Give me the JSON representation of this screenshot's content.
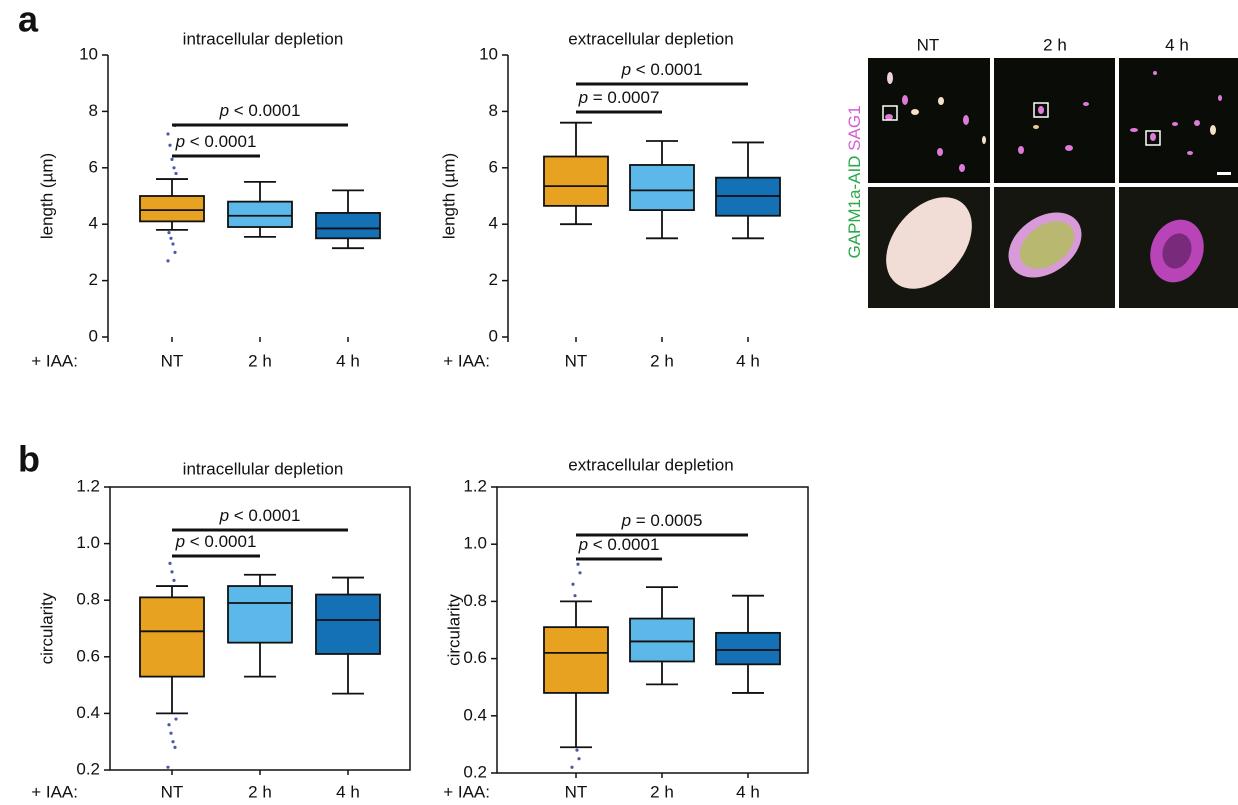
{
  "panel_labels": [
    "a",
    "b"
  ],
  "micrograph": {
    "columns": [
      "NT",
      "2 h",
      "4 h"
    ],
    "channel_labels": [
      {
        "text": "GAPM1a-AID",
        "color": "#2aa84a"
      },
      {
        "text": "SAG1",
        "color": "#d45fd0"
      }
    ]
  },
  "chart_data": [
    {
      "type": "box",
      "title": "intracellular depletion",
      "y_label": "length (µm)",
      "x_prefix": "+ IAA:",
      "categories": [
        "NT",
        "2 h",
        "4 h"
      ],
      "ylim": [
        0,
        10
      ],
      "yticks": [
        0,
        2,
        4,
        6,
        8,
        10
      ],
      "frame": false,
      "outlier_color": "#4a5aa8",
      "boxes": [
        {
          "color": "#e8a221",
          "whisker_low": 3.8,
          "q1": 4.1,
          "median": 4.5,
          "q3": 5.0,
          "whisker_high": 5.6,
          "outliers": [
            2.7,
            3.0,
            3.3,
            3.5,
            3.7,
            5.8,
            6.0,
            6.3,
            6.8,
            7.2,
            7.5
          ]
        },
        {
          "color": "#5cb8e8",
          "whisker_low": 3.55,
          "q1": 3.9,
          "median": 4.3,
          "q3": 4.8,
          "whisker_high": 5.5,
          "outliers": []
        },
        {
          "color": "#1471b6",
          "whisker_low": 3.15,
          "q1": 3.5,
          "median": 3.85,
          "q3": 4.4,
          "whisker_high": 5.2,
          "outliers": []
        }
      ],
      "comparisons": [
        {
          "between": [
            "NT",
            "2 h"
          ],
          "symbol": "p",
          "relation": " < 0.0001"
        },
        {
          "between": [
            "NT",
            "4 h"
          ],
          "symbol": "p",
          "relation": " < 0.0001"
        }
      ]
    },
    {
      "type": "box",
      "title": "extracellular depletion",
      "y_label": "length (µm)",
      "x_prefix": "+ IAA:",
      "categories": [
        "NT",
        "2 h",
        "4 h"
      ],
      "ylim": [
        0,
        10
      ],
      "yticks": [
        0,
        2,
        4,
        6,
        8,
        10
      ],
      "frame": false,
      "outlier_color": "#4a5aa8",
      "boxes": [
        {
          "color": "#e8a221",
          "whisker_low": 4.0,
          "q1": 4.65,
          "median": 5.35,
          "q3": 6.4,
          "whisker_high": 7.6,
          "outliers": []
        },
        {
          "color": "#5cb8e8",
          "whisker_low": 3.5,
          "q1": 4.5,
          "median": 5.2,
          "q3": 6.1,
          "whisker_high": 6.95,
          "outliers": []
        },
        {
          "color": "#1471b6",
          "whisker_low": 3.5,
          "q1": 4.3,
          "median": 5.0,
          "q3": 5.65,
          "whisker_high": 6.9,
          "outliers": []
        }
      ],
      "comparisons": [
        {
          "between": [
            "NT",
            "2 h"
          ],
          "symbol": "p",
          "relation": " = 0.0007"
        },
        {
          "between": [
            "NT",
            "4 h"
          ],
          "symbol": "p",
          "relation": " < 0.0001"
        }
      ]
    },
    {
      "type": "box",
      "title": "intracellular depletion",
      "y_label": "circularity",
      "x_prefix": "+ IAA:",
      "categories": [
        "NT",
        "2 h",
        "4 h"
      ],
      "ylim": [
        0.2,
        1.2
      ],
      "yticks": [
        0.2,
        0.4,
        0.6,
        0.8,
        {
          "value": 1,
          "label": "1.0"
        },
        1.2
      ],
      "frame": true,
      "outlier_color": "#4a5aa8",
      "boxes": [
        {
          "color": "#e8a221",
          "whisker_low": 0.4,
          "q1": 0.53,
          "median": 0.69,
          "q3": 0.81,
          "whisker_high": 0.85,
          "outliers": [
            0.21,
            0.28,
            0.3,
            0.33,
            0.36,
            0.38,
            0.87,
            0.9,
            0.93
          ]
        },
        {
          "color": "#5cb8e8",
          "whisker_low": 0.53,
          "q1": 0.65,
          "median": 0.79,
          "q3": 0.85,
          "whisker_high": 0.89,
          "outliers": []
        },
        {
          "color": "#1471b6",
          "whisker_low": 0.47,
          "q1": 0.61,
          "median": 0.73,
          "q3": 0.82,
          "whisker_high": 0.88,
          "outliers": []
        }
      ],
      "comparisons": [
        {
          "between": [
            "NT",
            "2 h"
          ],
          "symbol": "p",
          "relation": " < 0.0001"
        },
        {
          "between": [
            "NT",
            "4 h"
          ],
          "symbol": "p",
          "relation": " < 0.0001"
        }
      ]
    },
    {
      "type": "box",
      "title": "extracellular depletion",
      "y_label": "circularity",
      "x_prefix": "+ IAA:",
      "categories": [
        "NT",
        "2 h",
        "4 h"
      ],
      "ylim": [
        0.2,
        1.2
      ],
      "yticks": [
        0.2,
        0.4,
        0.6,
        0.8,
        {
          "value": 1,
          "label": "1.0"
        },
        1.2
      ],
      "frame": true,
      "outlier_color": "#4a5aa8",
      "boxes": [
        {
          "color": "#e8a221",
          "whisker_low": 0.29,
          "q1": 0.48,
          "median": 0.62,
          "q3": 0.71,
          "whisker_high": 0.8,
          "outliers": [
            0.22,
            0.25,
            0.28,
            0.82,
            0.86,
            0.9,
            0.93
          ]
        },
        {
          "color": "#5cb8e8",
          "whisker_low": 0.51,
          "q1": 0.59,
          "median": 0.66,
          "q3": 0.74,
          "whisker_high": 0.85,
          "outliers": []
        },
        {
          "color": "#1471b6",
          "whisker_low": 0.48,
          "q1": 0.58,
          "median": 0.63,
          "q3": 0.69,
          "whisker_high": 0.82,
          "outliers": []
        }
      ],
      "comparisons": [
        {
          "between": [
            "NT",
            "2 h"
          ],
          "symbol": "p",
          "relation": " < 0.0001"
        },
        {
          "between": [
            "NT",
            "4 h"
          ],
          "symbol": "p",
          "relation": " = 0.0005"
        }
      ]
    }
  ]
}
